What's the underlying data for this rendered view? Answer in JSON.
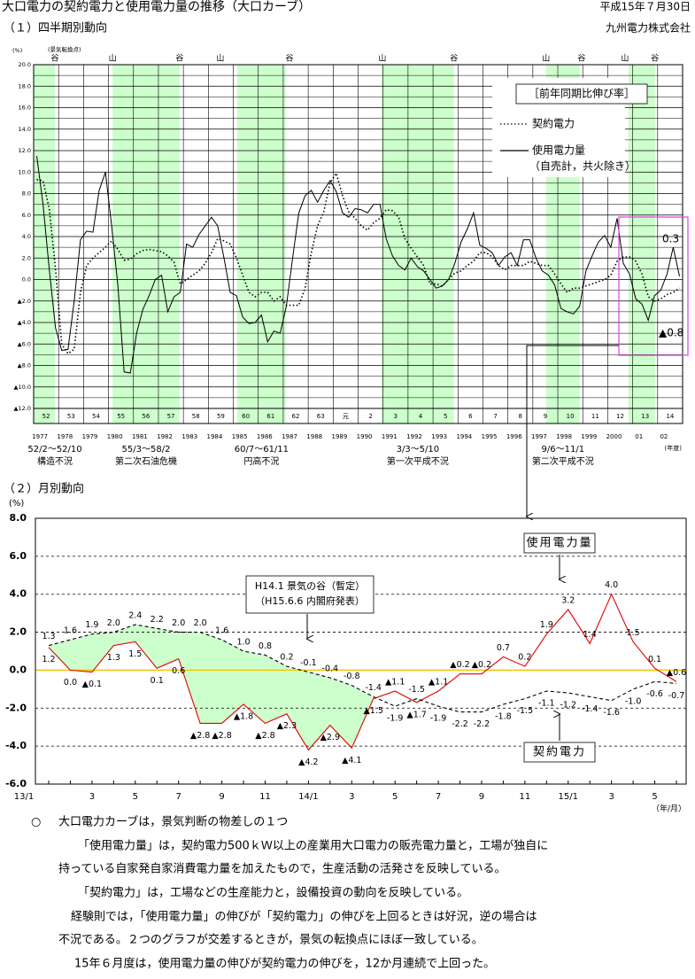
{
  "header": {
    "title": "大口電力の契約電力と使用電力量の推移（大口カーブ）",
    "date": "平成15年７月30日",
    "section1": "（１）四半期別動向",
    "company": "九州電力株式会社",
    "section2": "（２）月別動向"
  },
  "chart_data": [
    {
      "type": "line",
      "y_unit": "(%)",
      "turning_point_heading": "(景気転換点)",
      "xlim": [
        1977,
        2003
      ],
      "ylim": [
        -12,
        20
      ],
      "yticks": [
        {
          "value": 20,
          "label": "20.0"
        },
        {
          "value": 18,
          "label": "18.0"
        },
        {
          "value": 16,
          "label": "16.0"
        },
        {
          "value": 14,
          "label": "14.0"
        },
        {
          "value": 12,
          "label": "12.0"
        },
        {
          "value": 10,
          "label": "10.0"
        },
        {
          "value": 8,
          "label": "8.0"
        },
        {
          "value": 6,
          "label": "6.0"
        },
        {
          "value": 4,
          "label": "4.0"
        },
        {
          "value": 2,
          "label": "2.0"
        },
        {
          "value": 0,
          "label": "0.0"
        },
        {
          "value": -2,
          "label": "▲2.0"
        },
        {
          "value": -4,
          "label": "▲4.0"
        },
        {
          "value": -6,
          "label": "▲6.0"
        },
        {
          "value": -8,
          "label": "▲8.0"
        },
        {
          "value": -10,
          "label": "▲10.0"
        },
        {
          "value": -12,
          "label": "▲12.0"
        }
      ],
      "minor_yticks": [
        19,
        17,
        15,
        13,
        11,
        9,
        7,
        5,
        3,
        1,
        -1,
        -3,
        -5,
        -7,
        -9,
        -11
      ],
      "xticks": [
        1977,
        1978,
        1979,
        1980,
        1981,
        1982,
        1983,
        1984,
        1985,
        1986,
        1987,
        1988,
        1989,
        1990,
        1991,
        1992,
        1993,
        1994,
        1995,
        1996,
        1997,
        1998,
        1999,
        2000,
        2001,
        2002,
        2003
      ],
      "fiscal_years": [
        "52",
        "53",
        "54",
        "55",
        "56",
        "57",
        "58",
        "59",
        "60",
        "61",
        "62",
        "63",
        "元",
        "2",
        "3",
        "4",
        "5",
        "6",
        "7",
        "8",
        "9",
        "10",
        "11",
        "12",
        "13",
        "14"
      ],
      "years": [
        "1977",
        "1978",
        "1979",
        "1980",
        "1981",
        "1982",
        "1983",
        "1984",
        "1985",
        "1986",
        "1987",
        "1988",
        "1989",
        "1990",
        "1991",
        "1992",
        "1993",
        "1994",
        "1995",
        "1996",
        "1997",
        "1998",
        "1999",
        "2000",
        "01",
        "02"
      ],
      "x_unit": "(年度)",
      "x": [
        1977.125,
        1977.375,
        1977.625,
        1977.875,
        1978.125,
        1978.375,
        1978.625,
        1978.875,
        1979.125,
        1979.375,
        1979.625,
        1979.875,
        1980.125,
        1980.375,
        1980.625,
        1980.875,
        1981.125,
        1981.375,
        1981.625,
        1981.875,
        1982.125,
        1982.375,
        1982.625,
        1982.875,
        1983.125,
        1983.375,
        1983.625,
        1983.875,
        1984.125,
        1984.375,
        1984.625,
        1984.875,
        1985.125,
        1985.375,
        1985.625,
        1985.875,
        1986.125,
        1986.375,
        1986.625,
        1986.875,
        1987.125,
        1987.375,
        1987.625,
        1987.875,
        1988.125,
        1988.375,
        1988.625,
        1988.875,
        1989.125,
        1989.375,
        1989.625,
        1989.875,
        1990.125,
        1990.375,
        1990.625,
        1990.875,
        1991.125,
        1991.375,
        1991.625,
        1991.875,
        1992.125,
        1992.375,
        1992.625,
        1992.875,
        1993.125,
        1993.375,
        1993.625,
        1993.875,
        1994.125,
        1994.375,
        1994.625,
        1994.875,
        1995.125,
        1995.375,
        1995.625,
        1995.875,
        1996.125,
        1996.375,
        1996.625,
        1996.875,
        1997.125,
        1997.375,
        1997.625,
        1997.875,
        1998.125,
        1998.375,
        1998.625,
        1998.875,
        1999.125,
        1999.375,
        1999.625,
        1999.875,
        2000.125,
        2000.375,
        2000.625,
        2000.875,
        2001.125,
        2001.375,
        2001.625,
        2001.875,
        2002.125,
        2002.375,
        2002.625,
        2002.875
      ],
      "series": [
        {
          "name": "契約電力",
          "color": "#000000",
          "line_style": "dotted",
          "last_label": "▲0.8",
          "values": [
            9.3,
            9.2,
            6.6,
            1.0,
            -6.0,
            -6.9,
            -6.5,
            -1.2,
            1.3,
            2.0,
            2.5,
            3.0,
            3.6,
            2.8,
            1.8,
            1.9,
            2.4,
            2.7,
            2.8,
            2.7,
            2.6,
            2.2,
            1.6,
            -0.4,
            0.0,
            0.4,
            0.8,
            1.5,
            2.5,
            3.8,
            3.6,
            3.3,
            2.0,
            0.4,
            -1.2,
            -1.6,
            -1.2,
            -1.2,
            -2.0,
            -1.6,
            -2.4,
            -2.4,
            -2.4,
            -0.8,
            2.5,
            5.0,
            6.3,
            9.0,
            9.9,
            7.8,
            6.3,
            5.7,
            5.0,
            4.6,
            5.3,
            5.7,
            6.5,
            6.4,
            5.8,
            3.8,
            2.9,
            2.1,
            1.3,
            -0.4,
            -0.4,
            -0.6,
            0.0,
            0.6,
            0.8,
            1.3,
            1.7,
            2.5,
            2.5,
            2.1,
            1.3,
            0.9,
            1.3,
            1.3,
            1.3,
            1.7,
            1.5,
            1.3,
            1.3,
            0.5,
            -0.4,
            -1.2,
            -0.8,
            -0.8,
            -0.6,
            -0.4,
            -0.2,
            0.0,
            0.4,
            1.7,
            2.1,
            2.1,
            1.7,
            0.5,
            -1.6,
            -2.0,
            -1.8,
            -1.4,
            -1.2,
            -0.8
          ]
        },
        {
          "name": "使用電力量",
          "color": "#000000",
          "line_style": "solid",
          "last_label": "0.3",
          "values": [
            11.5,
            7.0,
            1.0,
            -4.5,
            -6.6,
            -6.5,
            -2.0,
            3.7,
            4.5,
            4.4,
            8.3,
            10.0,
            5.0,
            -0.5,
            -8.6,
            -8.7,
            -5.0,
            -2.8,
            -1.5,
            0.0,
            0.4,
            -3.0,
            -1.6,
            -1.2,
            3.3,
            3.0,
            4.2,
            5.0,
            5.8,
            5.0,
            2.0,
            -1.2,
            -1.5,
            -3.5,
            -4.1,
            -4.0,
            -3.3,
            -5.8,
            -4.8,
            -5.0,
            -2.5,
            2.0,
            6.2,
            7.8,
            8.3,
            7.2,
            8.3,
            9.2,
            8.2,
            6.2,
            5.8,
            6.6,
            6.5,
            6.2,
            7.0,
            7.0,
            3.8,
            2.2,
            1.3,
            0.9,
            2.0,
            1.2,
            0.8,
            0.0,
            -0.8,
            -0.6,
            0.0,
            1.5,
            3.5,
            4.7,
            6.2,
            3.2,
            2.9,
            2.5,
            1.3,
            2.1,
            2.5,
            1.3,
            3.7,
            3.7,
            2.0,
            0.8,
            0.4,
            -0.5,
            -2.7,
            -3.0,
            -3.2,
            -2.5,
            0.8,
            2.2,
            3.5,
            4.1,
            3.0,
            5.7,
            1.5,
            0.5,
            -1.8,
            -2.3,
            -3.8,
            -1.5,
            -1.0,
            0.5,
            3.0,
            0.3
          ]
        }
      ],
      "legend_title": "［前年同期比伸び率］",
      "legend_note": "（自売計，共火除き）",
      "band_color": "#ccffcc",
      "recessions": [
        {
          "start": 1977.0,
          "end": 1977.85,
          "period": "52/2～52/10",
          "name": "構造不況"
        },
        {
          "start": 1980.16,
          "end": 1982.85,
          "period": "55/3～58/2",
          "name": "第二次石油危機"
        },
        {
          "start": 1985.16,
          "end": 1987.1,
          "period": "60/7～61/11",
          "name": "円高不況"
        },
        {
          "start": 1990.94,
          "end": 1993.84,
          "period": "3/3～5/10",
          "name": "第一次平成不況"
        },
        {
          "start": 1997.53,
          "end": 1998.88,
          "period": "9/6～11/1",
          "name": "第二次平成不況"
        },
        {
          "start": 2000.83,
          "end": 2001.89
        }
      ],
      "turning_points": [
        {
          "x": 1977.85,
          "label": "谷"
        },
        {
          "x": 1980.16,
          "label": "山"
        },
        {
          "x": 1982.85,
          "label": "谷"
        },
        {
          "x": 1984.48,
          "label": "山"
        },
        {
          "x": 1987.25,
          "label": "谷"
        },
        {
          "x": 1990.97,
          "label": "山"
        },
        {
          "x": 1993.84,
          "label": "谷"
        },
        {
          "x": 1997.53,
          "label": "山"
        },
        {
          "x": 1998.95,
          "label": "谷"
        },
        {
          "x": 2000.69,
          "label": "山"
        },
        {
          "x": 2001.89,
          "label": "谷"
        }
      ]
    },
    {
      "type": "line",
      "y_unit": "(%)",
      "ylim": [
        -6,
        8
      ],
      "yticks": [
        {
          "value": 8,
          "label": "8.0"
        },
        {
          "value": 6,
          "label": "6.0"
        },
        {
          "value": 4,
          "label": "4.0"
        },
        {
          "value": 2,
          "label": "2.0"
        },
        {
          "value": 0,
          "label": "0.0"
        },
        {
          "value": -2,
          "label": "-2.0"
        },
        {
          "value": -4,
          "label": "-4.0"
        },
        {
          "value": -6,
          "label": "-6.0"
        }
      ],
      "categories": [
        "13/1",
        null,
        "3",
        null,
        "5",
        null,
        "7",
        null,
        "9",
        null,
        "11",
        null,
        "14/1",
        null,
        "3",
        null,
        "5",
        null,
        "7",
        null,
        "9",
        null,
        "11",
        null,
        "15/1",
        null,
        "3",
        null,
        "5",
        null
      ],
      "x_unit": "（年/月）",
      "series": [
        {
          "name": "使用電力量",
          "color": "#e00000",
          "line_style": "solid",
          "values": [
            1.2,
            0.0,
            -0.1,
            1.3,
            1.5,
            0.1,
            0.6,
            -2.8,
            -2.8,
            -1.8,
            -2.8,
            -2.3,
            -4.2,
            -2.9,
            -4.1,
            -1.5,
            -1.1,
            -1.7,
            -1.1,
            -0.2,
            -0.2,
            0.7,
            0.2,
            1.9,
            3.2,
            1.4,
            4.0,
            1.5,
            0.1,
            -0.6
          ],
          "value_labels": [
            "1.2",
            "0.0",
            "▲0.1",
            "1.3",
            "1.5",
            "0.1",
            "0.6",
            "▲2.8",
            "▲2.8",
            "▲1.8",
            "▲2.8",
            "▲2.3",
            "▲4.2",
            "▲2.9",
            "▲4.1",
            "▲1.5",
            "▲1.1",
            "▲1.7",
            "▲1.1",
            "▲0.2",
            "▲0.2",
            "0.7",
            "0.2",
            "1.9",
            "3.2",
            "1.4",
            "4.0",
            "1.5",
            "0.1",
            "▲0.6"
          ]
        },
        {
          "name": "契約電力",
          "color": "#000000",
          "line_style": "dashed",
          "values": [
            1.3,
            1.6,
            1.9,
            2.0,
            2.4,
            2.2,
            2.0,
            2.0,
            1.6,
            1.0,
            0.8,
            0.2,
            -0.1,
            -0.4,
            -0.8,
            -1.4,
            -1.9,
            -1.5,
            -1.9,
            -2.2,
            -2.2,
            -1.8,
            -1.5,
            -1.1,
            -1.2,
            -1.4,
            -1.6,
            -1.0,
            -0.6,
            -0.7
          ],
          "value_labels": [
            "1.3",
            "1.6",
            "1.9",
            "2.0",
            "2.4",
            "2.2",
            "2.0",
            "2.0",
            "1.6",
            "1.0",
            "0.8",
            "0.2",
            "-0.1",
            "-0.4",
            "-0.8",
            "-1.4",
            "-1.9",
            "-1.5",
            "-1.9",
            "-2.2",
            "-2.2",
            "-1.8",
            "-1.5",
            "-1.1",
            "-1.2",
            "-1.4",
            "-1.6",
            "-1.0",
            "-0.6",
            "-0.7"
          ]
        }
      ],
      "annotation": [
        "H14.1 景気の谷（暫定）",
        "（H15.6.6 内閣府発表）"
      ],
      "fill_color": "#ccffcc",
      "zero_line_color": "#f0c800",
      "grid": true
    }
  ],
  "notes": {
    "bullet": "○",
    "heading": "大口電力カーブは，景気判断の物差しの１つ",
    "lines": [
      "「使用電力量」は，契約電力500ｋＷ以上の産業用大口電力の販売電力量と，工場が独自に",
      "持っている自家発自家消費電力量を加えたもので，生産活動の活発さを反映している。",
      "「契約電力」は，工場などの生産能力と，設備投資の動向を反映している。",
      "経験則では，「使用電力量」の伸びが「契約電力」の伸びを上回るときは好況，逆の場合は",
      "不況である。２つのグラフが交差するときが，景気の転換点にほぼ一致している。",
      "15年６月度は，使用電力量の伸びが契約電力の伸びを，12か月連続で上回った。"
    ]
  }
}
